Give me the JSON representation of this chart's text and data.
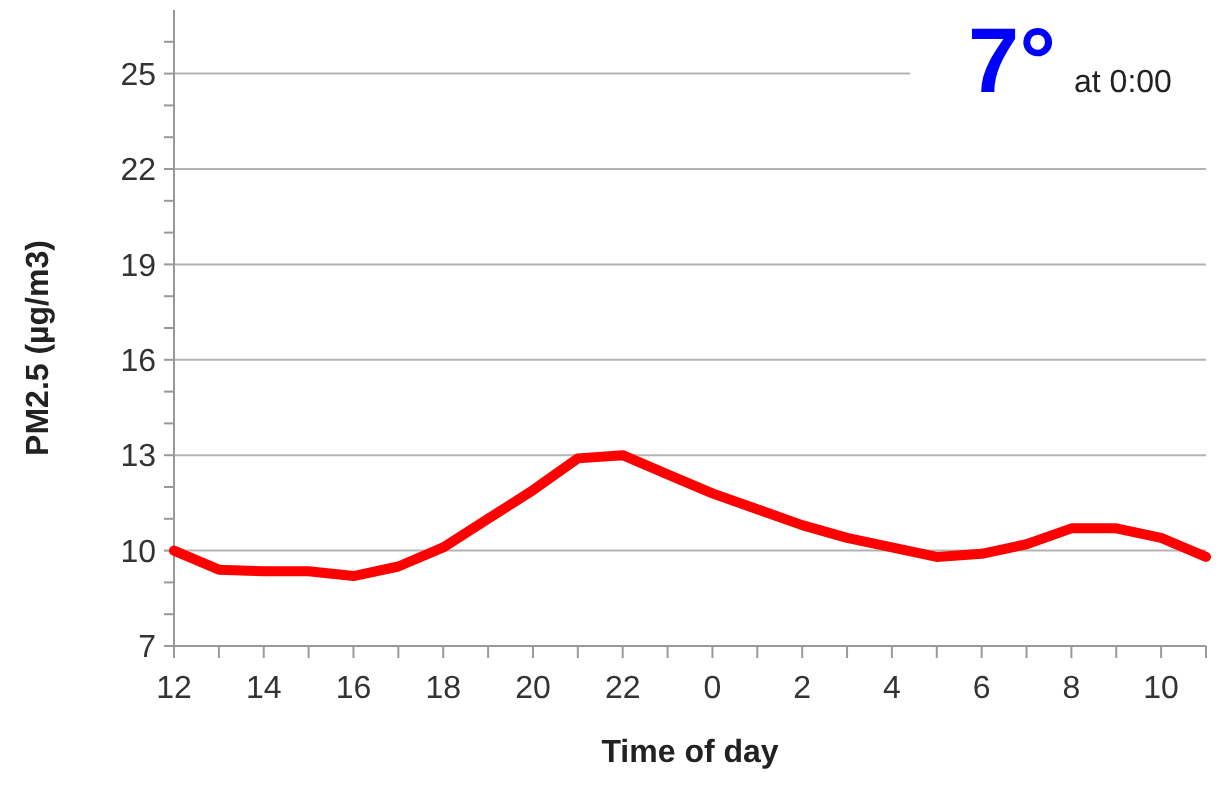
{
  "chart_data": {
    "type": "line",
    "xlabel": "Time of day",
    "ylabel": "PM2.5 (µg/m3)",
    "categories": [
      "12",
      null,
      "14",
      null,
      "16",
      null,
      "18",
      null,
      "20",
      null,
      "22",
      null,
      "0",
      null,
      "2",
      null,
      "4",
      null,
      "6",
      null,
      "8",
      null,
      "10",
      null
    ],
    "series": [
      {
        "color": "#ff0000",
        "values": [
          10.0,
          9.4,
          9.35,
          9.35,
          9.2,
          9.5,
          10.1,
          11.0,
          11.9,
          12.9,
          13.0,
          12.4,
          11.8,
          11.3,
          10.8,
          10.4,
          10.1,
          9.8,
          9.9,
          10.2,
          10.7,
          10.7,
          10.4,
          9.8
        ]
      }
    ],
    "ylim": [
      7,
      27
    ],
    "yticks": [
      7,
      {
        "value": 8,
        "label": null
      },
      {
        "value": 9,
        "label": null
      },
      10,
      {
        "value": 11,
        "label": null
      },
      {
        "value": 12,
        "label": null
      },
      13,
      {
        "value": 14,
        "label": null
      },
      {
        "value": 15,
        "label": null
      },
      16,
      {
        "value": 17,
        "label": null
      },
      {
        "value": 18,
        "label": null
      },
      19,
      {
        "value": 20,
        "label": null
      },
      {
        "value": 21,
        "label": null
      },
      22,
      {
        "value": 23,
        "label": null
      },
      {
        "value": 24,
        "label": null
      },
      25,
      {
        "value": 26,
        "label": null
      }
    ],
    "grid": "y",
    "marker": "none",
    "line_style": "solid",
    "annotations": [
      "7°",
      "at 0:00"
    ]
  }
}
